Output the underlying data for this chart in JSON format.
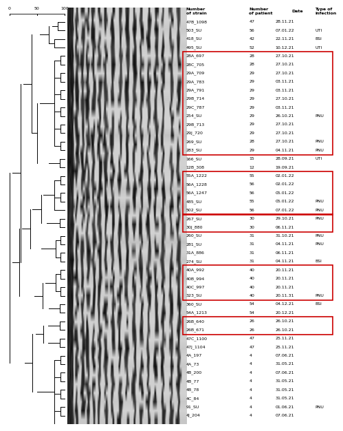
{
  "strains": [
    {
      "name": "47B_1098",
      "patient": "47",
      "date": "28.11.21",
      "infection": ""
    },
    {
      "name": "503_SU",
      "patient": "56",
      "date": "07.01.22",
      "infection": "UTI"
    },
    {
      "name": "418_SU",
      "patient": "42",
      "date": "22.11.21",
      "infection": "BSI"
    },
    {
      "name": "495_SU",
      "patient": "52",
      "date": "10.12.21",
      "infection": "UTI"
    },
    {
      "name": "28A_697",
      "patient": "28",
      "date": "27.10.21",
      "infection": ""
    },
    {
      "name": "28C_705",
      "patient": "28",
      "date": "27.10.21",
      "infection": ""
    },
    {
      "name": "29A_709",
      "patient": "29",
      "date": "27.10.21",
      "infection": ""
    },
    {
      "name": "29A_783",
      "patient": "29",
      "date": "03.11.21",
      "infection": ""
    },
    {
      "name": "29A_791",
      "patient": "29",
      "date": "03.11.21",
      "infection": ""
    },
    {
      "name": "29B_714",
      "patient": "29",
      "date": "27.10.21",
      "infection": ""
    },
    {
      "name": "29C_787",
      "patient": "29",
      "date": "03.11.21",
      "infection": ""
    },
    {
      "name": "254_SU",
      "patient": "29",
      "date": "26.10.21",
      "infection": "PNU"
    },
    {
      "name": "29B_713",
      "patient": "29",
      "date": "27.10.21",
      "infection": ""
    },
    {
      "name": "29J_720",
      "patient": "29",
      "date": "27.10.21",
      "infection": ""
    },
    {
      "name": "269_SU",
      "patient": "28",
      "date": "27.10.21",
      "infection": "PNU"
    },
    {
      "name": "283_SU",
      "patient": "29",
      "date": "04.11.21",
      "infection": "PNU"
    },
    {
      "name": "166_SU",
      "patient": "15",
      "date": "28.09.21",
      "infection": "UTI"
    },
    {
      "name": "12B_308",
      "patient": "12",
      "date": "19.09.21",
      "infection": ""
    },
    {
      "name": "55A_1222",
      "patient": "55",
      "date": "02.01.22",
      "infection": ""
    },
    {
      "name": "56A_1228",
      "patient": "56",
      "date": "02.01.22",
      "infection": ""
    },
    {
      "name": "56A_1247",
      "patient": "56",
      "date": "05.01.22",
      "infection": ""
    },
    {
      "name": "485_SU",
      "patient": "55",
      "date": "05.01.22",
      "infection": "PNU"
    },
    {
      "name": "502_SU",
      "patient": "56",
      "date": "07.01.22",
      "infection": "PNU"
    },
    {
      "name": "267_SU",
      "patient": "30",
      "date": "29.10.21",
      "infection": "PNU"
    },
    {
      "name": "30J_880",
      "patient": "30",
      "date": "06.11.21",
      "infection": ""
    },
    {
      "name": "260_SU",
      "patient": "31",
      "date": "31.10.21",
      "infection": "PNU"
    },
    {
      "name": "281_SU",
      "patient": "31",
      "date": "04.11.21",
      "infection": "PNU"
    },
    {
      "name": "31A_886",
      "patient": "31",
      "date": "06.11.21",
      "infection": ""
    },
    {
      "name": "274_SU",
      "patient": "31",
      "date": "04.11.21",
      "infection": "BSI"
    },
    {
      "name": "40A_992",
      "patient": "40",
      "date": "20.11.21",
      "infection": ""
    },
    {
      "name": "40B_994",
      "patient": "40",
      "date": "20.11.21",
      "infection": ""
    },
    {
      "name": "40C_997",
      "patient": "40",
      "date": "20.11.21",
      "infection": ""
    },
    {
      "name": "323_SU",
      "patient": "40",
      "date": "20.11.31",
      "infection": "PNU"
    },
    {
      "name": "360_SU",
      "patient": "54",
      "date": "04.12.21",
      "infection": "BSI"
    },
    {
      "name": "54A_1213",
      "patient": "54",
      "date": "20.12.21",
      "infection": ""
    },
    {
      "name": "26B_640",
      "patient": "26",
      "date": "26.10.21",
      "infection": ""
    },
    {
      "name": "26B_671",
      "patient": "26",
      "date": "26.10.21",
      "infection": ""
    },
    {
      "name": "47C_1100",
      "patient": "47",
      "date": "25.11.21",
      "infection": ""
    },
    {
      "name": "47J_1104",
      "patient": "47",
      "date": "25.11.21",
      "infection": ""
    },
    {
      "name": "4A_197",
      "patient": "4",
      "date": "07.06.21",
      "infection": ""
    },
    {
      "name": "4A_73",
      "patient": "4",
      "date": "31.05.21",
      "infection": ""
    },
    {
      "name": "4B_200",
      "patient": "4",
      "date": "07.06.21",
      "infection": ""
    },
    {
      "name": "4B_77",
      "patient": "4",
      "date": "31.05.21",
      "infection": ""
    },
    {
      "name": "4B_78",
      "patient": "4",
      "date": "31.05.21",
      "infection": ""
    },
    {
      "name": "4C_84",
      "patient": "4",
      "date": "31.05.21",
      "infection": ""
    },
    {
      "name": "91_SU",
      "patient": "4",
      "date": "01.06.21",
      "infection": "PNU"
    },
    {
      "name": "4J_204",
      "patient": "4",
      "date": "07.06.21",
      "infection": ""
    }
  ],
  "box_groups": [
    {
      "start": 4,
      "end": 15
    },
    {
      "start": 18,
      "end": 22
    },
    {
      "start": 23,
      "end": 24
    },
    {
      "start": 29,
      "end": 32
    },
    {
      "start": 35,
      "end": 36
    }
  ],
  "box_color": "#cc0000",
  "text_color": "#000000",
  "header_color": "#000000",
  "background": "#ffffff",
  "dend_color": "#000000"
}
